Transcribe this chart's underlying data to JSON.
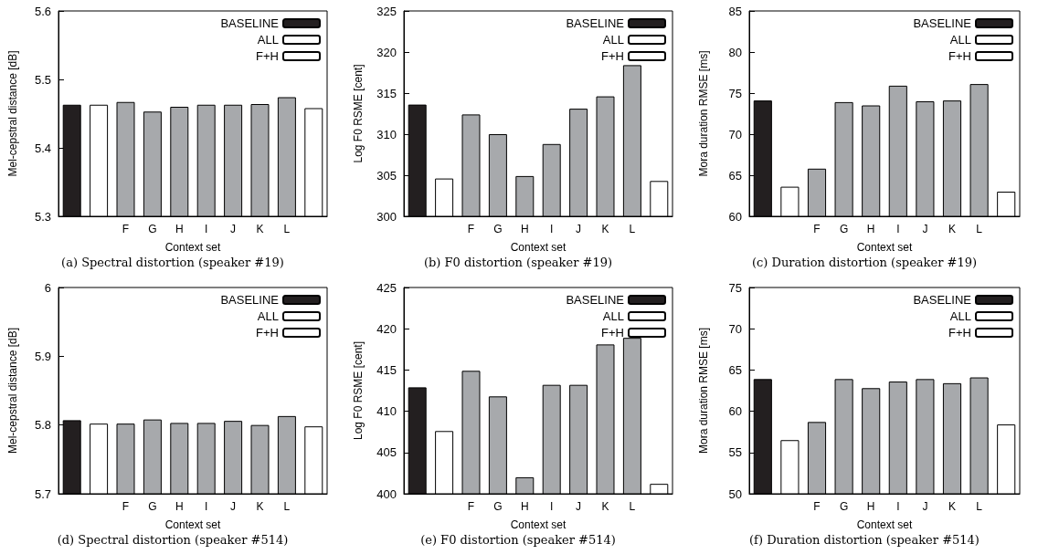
{
  "chart_data": [
    {
      "type": "bar",
      "title": "(a) Spectral distortion (speaker #19)",
      "xlabel": "Context set",
      "ylabel": "Mel-cepstral distance [dB]",
      "categories": [
        null,
        null,
        "F",
        "G",
        "H",
        "I",
        "J",
        "K",
        "L",
        null
      ],
      "ylim": [
        5.3,
        5.6
      ],
      "yticks": [
        5.3,
        5.4,
        5.5,
        5.6
      ],
      "legend": "top right",
      "series": [
        {
          "name": "BASELINE",
          "color": "#231f20",
          "values": [
            5.463,
            null,
            null,
            null,
            null,
            null,
            null,
            null,
            null,
            null
          ]
        },
        {
          "name": "ALL",
          "color": "#ffffff",
          "values": [
            null,
            5.463,
            null,
            null,
            null,
            null,
            null,
            null,
            null,
            null
          ]
        },
        {
          "color": "#a7a9ac",
          "values": [
            null,
            null,
            5.467,
            5.453,
            5.46,
            5.463,
            5.463,
            5.464,
            5.474,
            null
          ]
        },
        {
          "name": "F+H",
          "color": "#ffffff",
          "values": [
            null,
            null,
            null,
            null,
            null,
            null,
            null,
            null,
            null,
            5.458
          ]
        }
      ]
    },
    {
      "type": "bar",
      "title": "(b) F0 distortion (speaker #19)",
      "xlabel": "Context set",
      "ylabel": "Log F0 RSME [cent]",
      "categories": [
        null,
        null,
        "F",
        "G",
        "H",
        "I",
        "J",
        "K",
        "L",
        null
      ],
      "ylim": [
        300,
        325
      ],
      "yticks": [
        300,
        305,
        310,
        315,
        320,
        325
      ],
      "legend": "top right",
      "series": [
        {
          "name": "BASELINE",
          "color": "#231f20",
          "values": [
            313.6,
            null,
            null,
            null,
            null,
            null,
            null,
            null,
            null,
            null
          ]
        },
        {
          "name": "ALL",
          "color": "#ffffff",
          "values": [
            null,
            304.6,
            null,
            null,
            null,
            null,
            null,
            null,
            null,
            null
          ]
        },
        {
          "color": "#a7a9ac",
          "values": [
            null,
            null,
            312.4,
            310.0,
            304.9,
            308.8,
            313.1,
            314.6,
            318.4,
            null
          ]
        },
        {
          "name": "F+H",
          "color": "#ffffff",
          "values": [
            null,
            null,
            null,
            null,
            null,
            null,
            null,
            null,
            null,
            304.3
          ]
        }
      ]
    },
    {
      "type": "bar",
      "title": "(c) Duration distortion (speaker #19)",
      "xlabel": "Context set",
      "ylabel": "Mora duration RMSE [ms]",
      "categories": [
        null,
        null,
        "F",
        "G",
        "H",
        "I",
        "J",
        "K",
        "L",
        null
      ],
      "ylim": [
        60,
        85
      ],
      "yticks": [
        60,
        65,
        70,
        75,
        80,
        85
      ],
      "legend": "top right",
      "series": [
        {
          "name": "BASELINE",
          "color": "#231f20",
          "values": [
            74.1,
            null,
            null,
            null,
            null,
            null,
            null,
            null,
            null,
            null
          ]
        },
        {
          "name": "ALL",
          "color": "#ffffff",
          "values": [
            null,
            63.6,
            null,
            null,
            null,
            null,
            null,
            null,
            null,
            null
          ]
        },
        {
          "color": "#a7a9ac",
          "values": [
            null,
            null,
            65.8,
            73.9,
            73.5,
            75.9,
            74.0,
            74.1,
            76.1,
            null
          ]
        },
        {
          "name": "F+H",
          "color": "#ffffff",
          "values": [
            null,
            null,
            null,
            null,
            null,
            null,
            null,
            null,
            null,
            63.0
          ]
        }
      ]
    },
    {
      "type": "bar",
      "title": "(d) Spectral distortion (speaker #514)",
      "xlabel": "Context set",
      "ylabel": "Mel-cepstral distance [dB]",
      "categories": [
        null,
        null,
        "F",
        "G",
        "H",
        "I",
        "J",
        "K",
        "L",
        null
      ],
      "ylim": [
        5.7,
        6
      ],
      "yticks": [
        5.7,
        5.8,
        5.9,
        6
      ],
      "legend": "top right",
      "series": [
        {
          "name": "BASELINE",
          "color": "#231f20",
          "values": [
            5.807,
            null,
            null,
            null,
            null,
            null,
            null,
            null,
            null,
            null
          ]
        },
        {
          "name": "ALL",
          "color": "#ffffff",
          "values": [
            null,
            5.802,
            null,
            null,
            null,
            null,
            null,
            null,
            null,
            null
          ]
        },
        {
          "color": "#a7a9ac",
          "values": [
            null,
            null,
            5.802,
            5.808,
            5.803,
            5.803,
            5.806,
            5.8,
            5.813,
            null
          ]
        },
        {
          "name": "F+H",
          "color": "#ffffff",
          "values": [
            null,
            null,
            null,
            null,
            null,
            null,
            null,
            null,
            null,
            5.798
          ]
        }
      ]
    },
    {
      "type": "bar",
      "title": "(e) F0 distortion (speaker #514)",
      "xlabel": "Context set",
      "ylabel": "Log F0 RSME [cent]",
      "categories": [
        null,
        null,
        "F",
        "G",
        "H",
        "I",
        "J",
        "K",
        "L",
        null
      ],
      "ylim": [
        400,
        425
      ],
      "yticks": [
        400,
        405,
        410,
        415,
        420,
        425
      ],
      "legend": "top right",
      "series": [
        {
          "name": "BASELINE",
          "color": "#231f20",
          "values": [
            412.9,
            null,
            null,
            null,
            null,
            null,
            null,
            null,
            null,
            null
          ]
        },
        {
          "name": "ALL",
          "color": "#ffffff",
          "values": [
            null,
            407.6,
            null,
            null,
            null,
            null,
            null,
            null,
            null,
            null
          ]
        },
        {
          "color": "#a7a9ac",
          "values": [
            null,
            null,
            414.9,
            411.8,
            402.0,
            413.2,
            413.2,
            418.1,
            418.9,
            null
          ]
        },
        {
          "name": "F+H",
          "color": "#ffffff",
          "values": [
            null,
            null,
            null,
            null,
            null,
            null,
            null,
            null,
            null,
            401.2
          ]
        }
      ]
    },
    {
      "type": "bar",
      "title": "(f) Duration distortion (speaker #514)",
      "xlabel": "Context set",
      "ylabel": "Mora duration RMSE [ms]",
      "categories": [
        null,
        null,
        "F",
        "G",
        "H",
        "I",
        "J",
        "K",
        "L",
        null
      ],
      "ylim": [
        50,
        75
      ],
      "yticks": [
        50,
        55,
        60,
        65,
        70,
        75
      ],
      "legend": "top right",
      "series": [
        {
          "name": "BASELINE",
          "color": "#231f20",
          "values": [
            63.9,
            null,
            null,
            null,
            null,
            null,
            null,
            null,
            null,
            null
          ]
        },
        {
          "name": "ALL",
          "color": "#ffffff",
          "values": [
            null,
            56.5,
            null,
            null,
            null,
            null,
            null,
            null,
            null,
            null
          ]
        },
        {
          "color": "#a7a9ac",
          "values": [
            null,
            null,
            58.7,
            63.9,
            62.8,
            63.6,
            63.9,
            63.4,
            64.1,
            null
          ]
        },
        {
          "name": "F+H",
          "color": "#ffffff",
          "values": [
            null,
            null,
            null,
            null,
            null,
            null,
            null,
            null,
            null,
            58.4
          ]
        }
      ]
    }
  ]
}
